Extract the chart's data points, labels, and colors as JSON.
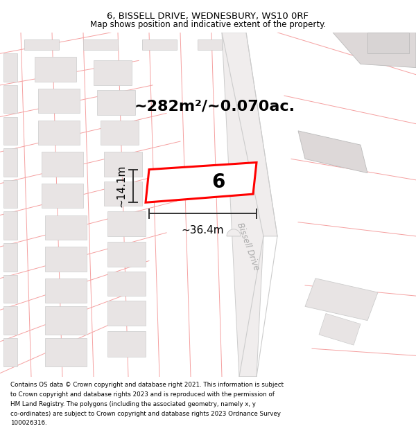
{
  "title_line1": "6, BISSELL DRIVE, WEDNESBURY, WS10 0RF",
  "title_line2": "Map shows position and indicative extent of the property.",
  "area_text": "~282m²/~0.070ac.",
  "label_number": "6",
  "dim_width": "~36.4m",
  "dim_height": "~14.1m",
  "road_label": "Bissell Drive",
  "footer_lines": [
    "Contains OS data © Crown copyright and database right 2021. This information is subject",
    "to Crown copyright and database rights 2023 and is reproduced with the permission of",
    "HM Land Registry. The polygons (including the associated geometry, namely x, y",
    "co-ordinates) are subject to Crown copyright and database rights 2023 Ordnance Survey",
    "100026316."
  ],
  "bg_color": "#ffffff",
  "cadastral_color": "#f5a0a0",
  "building_fill": "#e8e4e4",
  "building_stroke": "#cccccc",
  "road_fill": "#f0ecec",
  "road_stroke": "#cccccc",
  "plot_fill": "#ffffff",
  "plot_border": "#ff0000",
  "dim_color": "#333333"
}
